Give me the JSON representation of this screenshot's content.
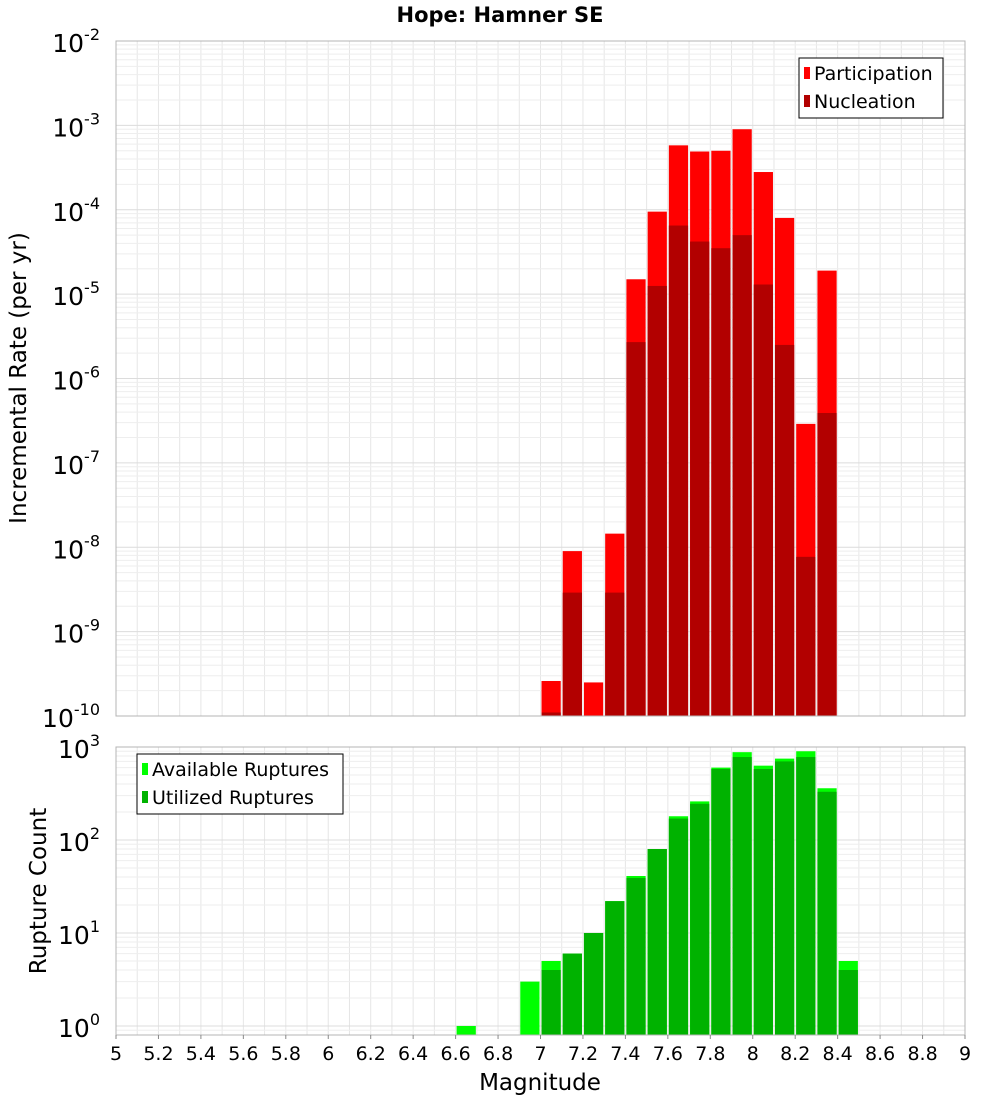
{
  "colors": {
    "participation": "#ff0000",
    "nucleation": "#b20000",
    "available": "#00ff00",
    "utilized": "#00b200",
    "grid": "#e6e6e6",
    "frame": "#b4b4b4"
  },
  "chart_data": [
    {
      "type": "bar",
      "title": "Hope: Hamner SE",
      "xlabel": "",
      "ylabel": "Incremental Rate (per yr)",
      "xlim": [
        5,
        9
      ],
      "ylim": [
        1e-10,
        0.01
      ],
      "yscale": "log",
      "grid": true,
      "legend_position": "top-right",
      "x": [
        7.05,
        7.15,
        7.25,
        7.35,
        7.45,
        7.55,
        7.65,
        7.75,
        7.85,
        7.95,
        8.05,
        8.15,
        8.25,
        8.35
      ],
      "series": [
        {
          "name": "Participation",
          "color": "#ff0000",
          "values": [
            2.6e-10,
            9e-09,
            2.5e-10,
            1.45e-08,
            1.5e-05,
            9.5e-05,
            0.00058,
            0.00049,
            0.0005,
            0.0009,
            0.00028,
            8e-05,
            2.9e-07,
            1.9e-05
          ]
        },
        {
          "name": "Nucleation",
          "color": "#b20000",
          "values": [
            1.1e-10,
            2.9e-09,
            null,
            2.9e-09,
            2.7e-06,
            1.25e-05,
            6.5e-05,
            4.2e-05,
            3.5e-05,
            5e-05,
            1.3e-05,
            2.5e-06,
            7.7e-09,
            3.9e-07
          ]
        }
      ]
    },
    {
      "type": "bar",
      "title": "",
      "xlabel": "Magnitude",
      "ylabel": "Rupture Count",
      "xlim": [
        5,
        9
      ],
      "ylim": [
        0.8,
        1000
      ],
      "yscale": "log",
      "grid": true,
      "legend_position": "top-left",
      "x": [
        6.65,
        6.95,
        7.05,
        7.15,
        7.25,
        7.35,
        7.45,
        7.55,
        7.65,
        7.75,
        7.85,
        7.95,
        8.05,
        8.15,
        8.25,
        8.35,
        8.45
      ],
      "series": [
        {
          "name": "Available Ruptures",
          "color": "#00ff00",
          "values": [
            1,
            3,
            5,
            6,
            10,
            22,
            41,
            80,
            180,
            260,
            600,
            880,
            630,
            750,
            900,
            360,
            5
          ]
        },
        {
          "name": "Utilized Ruptures",
          "color": "#00b200",
          "values": [
            null,
            null,
            4,
            6,
            10,
            22,
            39,
            80,
            170,
            245,
            580,
            780,
            580,
            700,
            780,
            330,
            4
          ]
        }
      ]
    }
  ],
  "ticks": {
    "x_labels": [
      "5",
      "5.2",
      "5.4",
      "5.6",
      "5.8",
      "6",
      "6.2",
      "6.4",
      "6.6",
      "6.8",
      "7",
      "7.2",
      "7.4",
      "7.6",
      "7.8",
      "8",
      "8.2",
      "8.4",
      "8.6",
      "8.8",
      "9"
    ],
    "top_y_exponents": [
      "-2",
      "-3",
      "-4",
      "-5",
      "-6",
      "-7",
      "-8",
      "-9",
      "-10"
    ],
    "bottom_y_exponents": [
      "3",
      "2",
      "1",
      "0"
    ],
    "base": "10"
  }
}
